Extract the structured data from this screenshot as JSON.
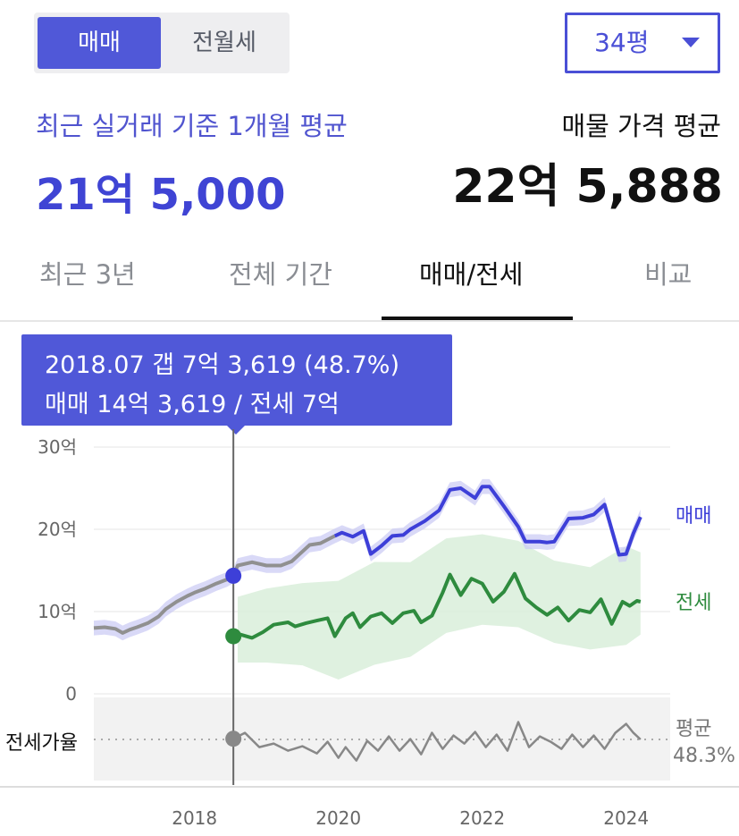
{
  "toggle": {
    "sale_label": "매매",
    "lease_label": "전월세"
  },
  "size_select": {
    "value": "34평",
    "caret": "chevron-down-icon"
  },
  "summary": {
    "recent_label": "최근 실거래 기준 1개월 평균",
    "recent_value": "21억 5,000",
    "listing_label": "매물 가격 평균",
    "listing_value": "22억 5,888"
  },
  "tabs": [
    {
      "label": "최근 3년",
      "active": false
    },
    {
      "label": "전체 기간",
      "active": false
    },
    {
      "label": "매매/전세",
      "active": true
    },
    {
      "label": "비교",
      "active": false
    }
  ],
  "tooltip": {
    "line1": "2018.07  갭 7억 3,619 (48.7%)",
    "line2": "매매 14억 3,619 / 전세 7억"
  },
  "colors": {
    "sale": "#3d3fd8",
    "sale_history": "#909090",
    "jeonse": "#2e8b3e",
    "jeonse_band": "#d9eedb",
    "sale_band": "#c9c9f3",
    "ratio": "#888888",
    "accent": "#5058d8"
  },
  "chart_data": {
    "type": "line",
    "y_unit": "억",
    "ylim": [
      0,
      30
    ],
    "y_ticks": [
      "30억",
      "20억",
      "10억",
      "0"
    ],
    "x_ticks": [
      "2018",
      "2020",
      "2022",
      "2024"
    ],
    "xlim": [
      2016.6,
      2024.5
    ],
    "cursor": {
      "x": 2018.54,
      "sale": 14.36,
      "jeonse": 7.0
    },
    "series": [
      {
        "name": "매매",
        "x": [
          2016.6,
          2016.75,
          2016.9,
          2017.0,
          2017.1,
          2017.2,
          2017.35,
          2017.5,
          2017.6,
          2017.75,
          2017.9,
          2018.0,
          2018.15,
          2018.3,
          2018.45,
          2018.54,
          2018.6,
          2018.8,
          2019.0,
          2019.2,
          2019.35,
          2019.5,
          2019.6,
          2019.75,
          2019.95,
          2020.05,
          2020.2,
          2020.35,
          2020.45,
          2020.6,
          2020.75,
          2020.9,
          2021.0,
          2021.2,
          2021.4,
          2021.55,
          2021.7,
          2021.9,
          2022.0,
          2022.1,
          2022.3,
          2022.5,
          2022.6,
          2022.8,
          2022.9,
          2023.0,
          2023.2,
          2023.4,
          2023.55,
          2023.7,
          2023.9,
          2024.0,
          2024.1,
          2024.2
        ],
        "y": [
          8.0,
          8.1,
          7.9,
          7.4,
          7.8,
          8.1,
          8.6,
          9.4,
          10.3,
          11.2,
          11.9,
          12.3,
          12.8,
          13.4,
          13.9,
          14.36,
          15.6,
          16.0,
          15.6,
          15.6,
          16.1,
          17.3,
          18.1,
          18.3,
          19.2,
          19.6,
          19.1,
          19.8,
          17.0,
          18.0,
          19.2,
          19.3,
          20.0,
          21.0,
          22.3,
          24.8,
          25.0,
          23.8,
          25.2,
          25.2,
          22.8,
          20.3,
          18.5,
          18.5,
          18.4,
          18.5,
          21.3,
          21.4,
          21.8,
          23.0,
          16.9,
          17.0,
          19.5,
          21.5
        ]
      },
      {
        "name": "전세",
        "x": [
          2018.54,
          2018.6,
          2018.8,
          2018.95,
          2019.1,
          2019.3,
          2019.4,
          2019.55,
          2019.7,
          2019.85,
          2019.95,
          2020.1,
          2020.2,
          2020.3,
          2020.45,
          2020.6,
          2020.75,
          2020.9,
          2021.05,
          2021.15,
          2021.3,
          2021.45,
          2021.55,
          2021.7,
          2021.85,
          2022.0,
          2022.15,
          2022.3,
          2022.45,
          2022.6,
          2022.75,
          2022.9,
          2023.05,
          2023.2,
          2023.35,
          2023.5,
          2023.65,
          2023.8,
          2023.95,
          2024.05,
          2024.15,
          2024.2
        ],
        "y": [
          7.0,
          7.3,
          6.8,
          7.5,
          8.4,
          8.7,
          8.2,
          8.6,
          8.9,
          9.2,
          7.0,
          9.2,
          9.8,
          8.1,
          9.4,
          9.8,
          8.6,
          9.8,
          10.1,
          8.7,
          9.5,
          12.3,
          14.5,
          12.0,
          14.0,
          13.4,
          11.2,
          12.4,
          14.6,
          11.6,
          10.5,
          9.6,
          10.5,
          8.9,
          10.2,
          9.9,
          11.5,
          8.5,
          11.2,
          10.7,
          11.3,
          11.2
        ]
      },
      {
        "name": "전세가율",
        "x": [
          2018.54,
          2018.7,
          2018.9,
          2019.1,
          2019.3,
          2019.5,
          2019.7,
          2019.85,
          2020.0,
          2020.1,
          2020.25,
          2020.4,
          2020.55,
          2020.7,
          2020.85,
          2021.0,
          2021.15,
          2021.3,
          2021.45,
          2021.6,
          2021.75,
          2021.9,
          2022.05,
          2022.2,
          2022.35,
          2022.5,
          2022.65,
          2022.8,
          2022.95,
          2023.1,
          2023.25,
          2023.4,
          2023.55,
          2023.7,
          2023.85,
          2024.0,
          2024.1,
          2024.2
        ],
        "y": [
          48.7,
          52.0,
          44.0,
          46.0,
          42.0,
          44.5,
          40.5,
          47.0,
          38.0,
          44.0,
          36.5,
          47.5,
          42.0,
          50.0,
          42.0,
          48.5,
          40.0,
          52.0,
          43.0,
          50.5,
          46.0,
          52.5,
          44.0,
          51.0,
          42.0,
          58.0,
          44.0,
          50.0,
          47.0,
          43.0,
          51.0,
          44.0,
          50.5,
          43.0,
          52.0,
          57.0,
          52.0,
          48.3
        ]
      }
    ],
    "labels": {
      "sale": "매매",
      "jeonse": "전세",
      "ratio": "전세가율",
      "avg_label": "평균",
      "avg_value": "48.3%"
    }
  }
}
